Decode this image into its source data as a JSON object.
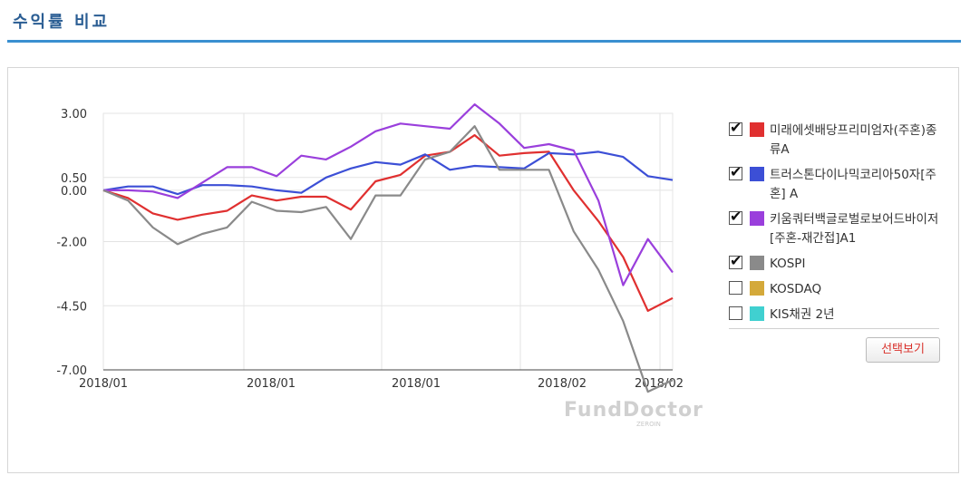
{
  "header": {
    "title": "수익률 비교"
  },
  "legend": {
    "items": [
      {
        "label": "미래에셋배당프리미엄자(주혼)종류A",
        "color": "#e03030",
        "checked": true
      },
      {
        "label": "트러스톤다이나믹코리아50자[주혼] A",
        "color": "#3c4fd6",
        "checked": true
      },
      {
        "label": "키움쿼터백글로벌로보어드바이저[주혼-재간접]A1",
        "color": "#9a3fdc",
        "checked": true
      },
      {
        "label": "KOSPI",
        "color": "#8a8a8a",
        "checked": true
      },
      {
        "label": "KOSDAQ",
        "color": "#d4a93a",
        "checked": false
      },
      {
        "label": "KIS채권 2년",
        "color": "#40d0d0",
        "checked": false
      }
    ],
    "check_mark": "✔"
  },
  "controls": {
    "select_view_label": "선택보기"
  },
  "watermark": {
    "brand": "FundDoctor",
    "sub": "ZEROIN"
  },
  "chart_data": {
    "type": "line",
    "x_tick_labels": [
      "2018/01",
      "2018/01",
      "2018/01",
      "2018/02",
      "2018/02"
    ],
    "y_ticks": [
      3.0,
      0.5,
      0.0,
      -2.0,
      -4.5,
      -7.0
    ],
    "y_tick_labels": [
      "3.00",
      "0.50",
      "0.00",
      "-2.00",
      "-4.50",
      "-7.00"
    ],
    "ylim": [
      -7.0,
      3.0
    ],
    "n_points": 24,
    "grid": true,
    "series": [
      {
        "name": "미래에셋배당프리미엄자(주혼)종류A",
        "color": "#e03030",
        "values": [
          0.0,
          -0.3,
          -0.9,
          -1.15,
          -0.95,
          -0.8,
          -0.2,
          -0.4,
          -0.25,
          -0.25,
          -0.75,
          0.35,
          0.6,
          1.35,
          1.5,
          2.15,
          1.35,
          1.45,
          1.5,
          0.0,
          -1.2,
          -2.6,
          -4.7,
          -4.2
        ]
      },
      {
        "name": "트러스톤다이나믹코리아50자[주혼] A",
        "color": "#3c4fd6",
        "values": [
          0.0,
          0.15,
          0.15,
          -0.15,
          0.2,
          0.2,
          0.15,
          0.0,
          -0.1,
          0.5,
          0.85,
          1.1,
          1.0,
          1.4,
          0.8,
          0.95,
          0.9,
          0.85,
          1.45,
          1.4,
          1.5,
          1.3,
          0.55,
          0.4
        ]
      },
      {
        "name": "키움쿼터백글로벌로보어드바이저[주혼-재간접]A1",
        "color": "#9a3fdc",
        "values": [
          0.0,
          0.0,
          -0.05,
          -0.3,
          0.3,
          0.9,
          0.9,
          0.55,
          1.35,
          1.2,
          1.7,
          2.3,
          2.6,
          2.5,
          2.4,
          3.35,
          2.6,
          1.65,
          1.8,
          1.55,
          -0.4,
          -3.7,
          -1.9,
          -3.2
        ]
      },
      {
        "name": "KOSPI",
        "color": "#8a8a8a",
        "values": [
          0.0,
          -0.4,
          -1.45,
          -2.1,
          -1.7,
          -1.45,
          -0.45,
          -0.8,
          -0.85,
          -0.65,
          -1.9,
          -0.2,
          -0.2,
          1.2,
          1.5,
          2.5,
          0.8,
          0.8,
          0.8,
          -1.6,
          -3.1,
          -5.1,
          -7.85,
          -7.4
        ]
      }
    ]
  }
}
